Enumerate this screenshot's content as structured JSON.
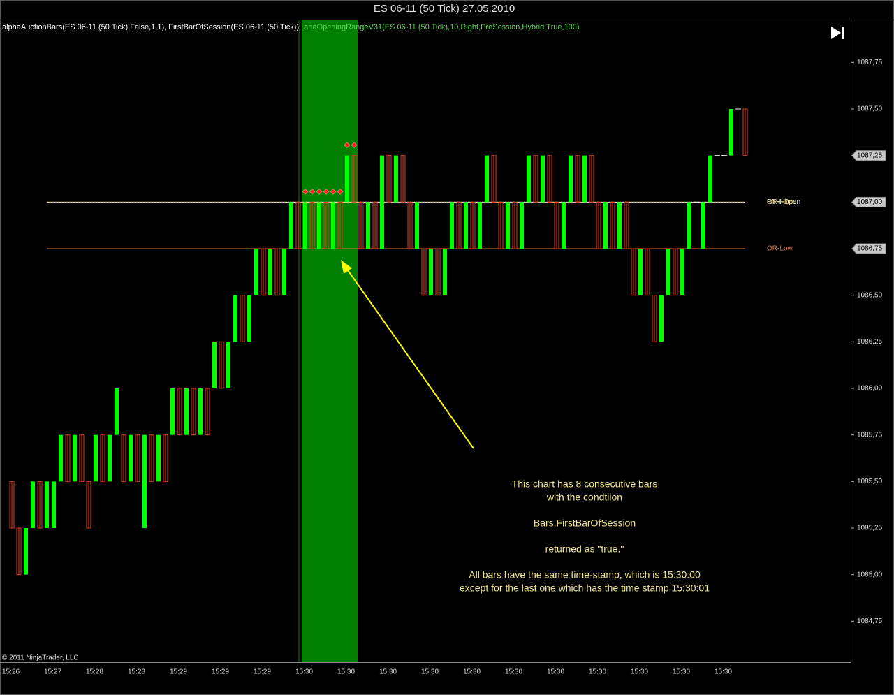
{
  "chart_data": {
    "type": "ohlc",
    "title": "ES 06-11 (50 Tick)  27.05.2010",
    "indicators": [
      {
        "text": "alphaAuctionBars(ES 06-11 (50 Tick),False,1,1), FirstBarOfSession(ES 06-11 (50 Tick)),",
        "color": "#ffffff"
      },
      {
        "text": "anaOpeningRangeV31(ES 06-11 (50 Tick),10,Right,PreSession,Hybrid,True,100)",
        "color": "#5fd35f"
      }
    ],
    "copyright": "© 2011 NinjaTrader, LLC",
    "categories": [
      "15:26",
      null,
      null,
      null,
      null,
      null,
      "15:27",
      null,
      null,
      null,
      null,
      null,
      "15:28",
      null,
      null,
      null,
      null,
      null,
      "15:28",
      null,
      null,
      null,
      null,
      null,
      "15:29",
      null,
      null,
      null,
      null,
      null,
      "15:29",
      null,
      null,
      null,
      null,
      null,
      "15:29",
      null,
      null,
      null,
      null,
      null,
      "15:30",
      null,
      null,
      null,
      null,
      null,
      "15:30",
      null,
      null,
      null,
      null,
      null,
      "15:30",
      null,
      null,
      null,
      null,
      null,
      "15:30",
      null,
      null,
      null,
      null,
      null,
      "15:30",
      null,
      null,
      null,
      null,
      null,
      "15:30",
      null,
      null,
      null,
      null,
      null,
      "15:30",
      null,
      null,
      null,
      null,
      null,
      "15:30",
      null,
      null,
      null,
      null,
      null,
      "15:30",
      null,
      null,
      null,
      null,
      null,
      "15:30",
      null,
      null,
      null,
      null,
      null,
      "15:30",
      null,
      null,
      null
    ],
    "open": [
      1085.5,
      1085.25,
      1085,
      1085.25,
      1085.5,
      1085.25,
      1085.25,
      1085.5,
      1085.75,
      1085.5,
      1085.75,
      1085.5,
      1085.5,
      1085.75,
      1085.5,
      1085.75,
      1085.75,
      1085.5,
      1085.75,
      1085.25,
      1085.75,
      1085.5,
      1085.75,
      1085.75,
      1086,
      1085.75,
      1086,
      1085.75,
      1086,
      1086,
      1086.25,
      1086,
      1086.25,
      1086.5,
      1086.25,
      1086.5,
      1086.75,
      1086.5,
      1086.75,
      1086.5,
      1086.75,
      1087,
      1086.75,
      1087,
      1086.75,
      1087,
      1086.75,
      1087,
      1087,
      1087.25,
      1087,
      1086.75,
      1087,
      1086.75,
      1087.25,
      1087,
      1087.25,
      1087,
      1086.75,
      1086.75,
      1086.5,
      1086.75,
      1086.5,
      1086.75,
      1087,
      1086.75,
      1087,
      1086.75,
      1087,
      1087.25,
      1087,
      1086.75,
      1087,
      1086.75,
      1087,
      1087.25,
      1087,
      1087.25,
      1087,
      1086.75,
      1087,
      1087.25,
      1087,
      1087.25,
      1087,
      1086.75,
      1087,
      1086.75,
      1087,
      1086.75,
      1086.5,
      1086.75,
      1086.5,
      1086.25,
      1086.5,
      1086.75,
      1086.5,
      1086.75,
      1087,
      1086.75,
      1087,
      1087.25,
      1087.25,
      1087.25,
      1087.5,
      1087.5
    ],
    "high": [
      1085.5,
      1085.25,
      1085.25,
      1085.5,
      1085.5,
      1085.5,
      1085.5,
      1085.75,
      1085.75,
      1085.75,
      1085.75,
      1085.5,
      1085.75,
      1085.75,
      1085.75,
      1086,
      1085.75,
      1085.75,
      1085.75,
      1085.75,
      1085.75,
      1085.75,
      1085.75,
      1086,
      1086,
      1086,
      1086,
      1086,
      1086,
      1086.25,
      1086.25,
      1086.25,
      1086.5,
      1086.5,
      1086.5,
      1086.75,
      1086.75,
      1086.75,
      1086.75,
      1086.75,
      1087,
      1087,
      1087,
      1087,
      1087,
      1087,
      1087,
      1087,
      1087.25,
      1087.25,
      1087,
      1087,
      1087,
      1087.25,
      1087.25,
      1087.25,
      1087.25,
      1087,
      1087,
      1086.75,
      1086.75,
      1086.75,
      1086.75,
      1087,
      1087,
      1087,
      1087,
      1087,
      1087.25,
      1087.25,
      1087,
      1087,
      1087,
      1087,
      1087.25,
      1087.25,
      1087.25,
      1087.25,
      1087,
      1087,
      1087.25,
      1087.25,
      1087.25,
      1087.25,
      1087,
      1087,
      1087,
      1087,
      1087,
      1086.75,
      1086.75,
      1086.75,
      1086.5,
      1086.5,
      1086.75,
      1086.75,
      1086.75,
      1087,
      1087,
      1087,
      1087.25,
      1087.25,
      1087.25,
      1087.5,
      1087.5,
      1087.5
    ],
    "low": [
      1085.25,
      1085,
      1085,
      1085.25,
      1085.25,
      1085.25,
      1085.25,
      1085.5,
      1085.5,
      1085.5,
      1085.5,
      1085.25,
      1085.5,
      1085.5,
      1085.5,
      1085.75,
      1085.5,
      1085.5,
      1085.5,
      1085.25,
      1085.5,
      1085.5,
      1085.5,
      1085.75,
      1085.75,
      1085.75,
      1085.75,
      1085.75,
      1085.75,
      1086,
      1086,
      1086,
      1086.25,
      1086.25,
      1086.25,
      1086.5,
      1086.5,
      1086.5,
      1086.5,
      1086.5,
      1086.75,
      1086.75,
      1086.75,
      1086.75,
      1086.75,
      1086.75,
      1086.75,
      1086.75,
      1087,
      1087,
      1086.75,
      1086.75,
      1086.75,
      1086.75,
      1087,
      1087,
      1087,
      1086.75,
      1086.75,
      1086.5,
      1086.5,
      1086.5,
      1086.5,
      1086.75,
      1086.75,
      1086.75,
      1086.75,
      1086.75,
      1087,
      1087,
      1086.75,
      1086.75,
      1086.75,
      1086.75,
      1087,
      1087,
      1087,
      1087,
      1086.75,
      1086.75,
      1087,
      1087,
      1087,
      1087,
      1086.75,
      1086.75,
      1086.75,
      1086.75,
      1086.75,
      1086.5,
      1086.5,
      1086.5,
      1086.25,
      1086.25,
      1086.5,
      1086.5,
      1086.5,
      1086.75,
      1087,
      1086.75,
      1087,
      1087.25,
      1087.25,
      1087.25,
      1087.5,
      1087.25
    ],
    "close": [
      1085.25,
      1085,
      1085.25,
      1085.5,
      1085.25,
      1085.5,
      1085.5,
      1085.75,
      1085.5,
      1085.75,
      1085.5,
      1085.25,
      1085.75,
      1085.5,
      1085.75,
      1086,
      1085.5,
      1085.75,
      1085.5,
      1085.75,
      1085.5,
      1085.75,
      1085.5,
      1086,
      1085.75,
      1086,
      1085.75,
      1086,
      1085.75,
      1086.25,
      1086,
      1086.25,
      1086.5,
      1086.25,
      1086.5,
      1086.75,
      1086.5,
      1086.75,
      1086.5,
      1086.75,
      1087,
      1086.75,
      1087,
      1086.75,
      1087,
      1086.75,
      1087,
      1086.75,
      1087.25,
      1087,
      1086.75,
      1087,
      1086.75,
      1087.25,
      1087,
      1087.25,
      1087,
      1086.75,
      1087,
      1086.5,
      1086.75,
      1086.5,
      1086.75,
      1087,
      1086.75,
      1087,
      1086.75,
      1087,
      1087.25,
      1087,
      1086.75,
      1087,
      1086.75,
      1087,
      1087.25,
      1087,
      1087.25,
      1087,
      1086.75,
      1087,
      1087.25,
      1087,
      1087.25,
      1087,
      1086.75,
      1087,
      1086.75,
      1087,
      1086.75,
      1086.5,
      1086.75,
      1086.5,
      1086.25,
      1086.5,
      1086.75,
      1086.5,
      1086.75,
      1087,
      1087,
      1087,
      1087.25,
      1087.25,
      1087.25,
      1087.5,
      1087.5,
      1087.25
    ],
    "colors": {
      "up": "#00ff00",
      "down": "#e83a1e",
      "flat": "#ffffff"
    },
    "ylim": [
      1084.53,
      1087.98
    ],
    "yticks": [
      {
        "value": 1084.75,
        "label": "1084,75"
      },
      {
        "value": 1085,
        "label": "1085,00"
      },
      {
        "value": 1085.25,
        "label": "1085,25"
      },
      {
        "value": 1085.5,
        "label": "1085,50"
      },
      {
        "value": 1085.75,
        "label": "1085,75"
      },
      {
        "value": 1086,
        "label": "1086,00"
      },
      {
        "value": 1086.25,
        "label": "1086,25"
      },
      {
        "value": 1086.5,
        "label": "1086,50"
      },
      {
        "value": 1086.75,
        "label": "1086,75"
      },
      {
        "value": 1087,
        "label": "1087,00"
      },
      {
        "value": 1087.25,
        "label": "1087,25"
      },
      {
        "value": 1087.5,
        "label": "1087,50"
      },
      {
        "value": 1087.75,
        "label": "1087,75"
      }
    ],
    "grid": false,
    "levels": [
      {
        "name": "RTH-Open",
        "value": 1087,
        "color": "#ffffff"
      },
      {
        "name": "OR-High",
        "value": 1087,
        "color": "#d8c060"
      },
      {
        "name": "OR-Low",
        "value": 1086.75,
        "color": "#e0783a"
      }
    ],
    "first_bar_of_session": {
      "bars": [
        42,
        43,
        44,
        45,
        46,
        47,
        48,
        49
      ],
      "color": "#ff2020",
      "highlight": "#008000"
    },
    "annotation": {
      "color": "#f0e68c",
      "paragraphs": [
        [
          "This chart has 8 consecutive bars",
          "with the condtiion"
        ],
        [
          "Bars.FirstBarOfSession"
        ],
        [
          "returned as \"true.\""
        ],
        [
          "All bars have the same time-stamp, which is 15:30:00",
          "except for the last one which has the time stamp 15:30:01"
        ]
      ]
    }
  }
}
